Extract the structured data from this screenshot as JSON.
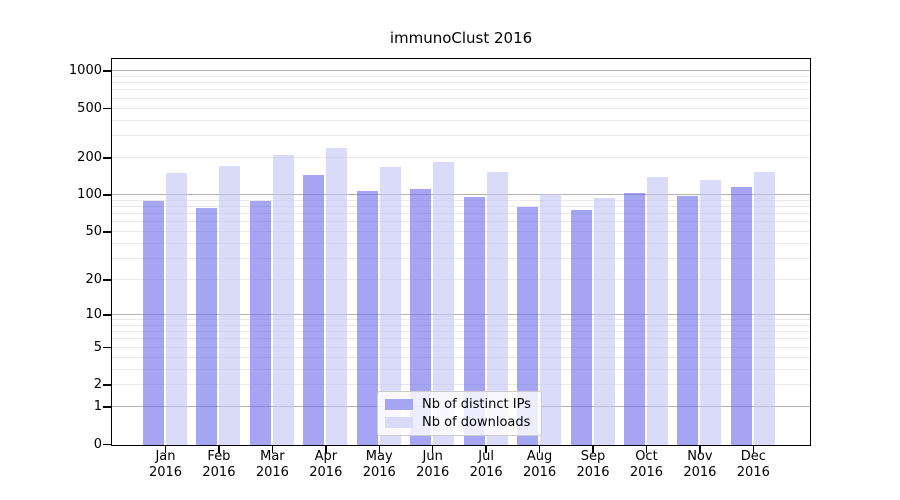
{
  "title": "immunoClust 2016",
  "chart_data": {
    "type": "bar",
    "title": "immunoClust 2016",
    "categories": [
      "Jan",
      "Feb",
      "Mar",
      "Apr",
      "May",
      "Jun",
      "Jul",
      "Aug",
      "Sep",
      "Oct",
      "Nov",
      "Dec"
    ],
    "x_axis": {
      "year": "2016",
      "tick_label_format": "Month over 2016, two lines"
    },
    "y_axis": {
      "scale": "log1p",
      "ticks": [
        0,
        1,
        2,
        5,
        10,
        20,
        50,
        100,
        200,
        500,
        1000
      ],
      "major_gridlines": [
        1,
        10,
        100,
        1000
      ],
      "minor_gridlines": [
        2,
        3,
        4,
        5,
        6,
        7,
        8,
        9,
        20,
        30,
        40,
        50,
        60,
        70,
        80,
        90,
        200,
        300,
        400,
        500,
        600,
        700,
        800,
        900
      ],
      "ylim": [
        0,
        1250
      ],
      "grid": "on"
    },
    "series": [
      {
        "name": "Nb of distinct IPs",
        "color": "#a5a5f2",
        "fill": "rgba(110,110,235,0.62)",
        "values": [
          91,
          79,
          91,
          148,
          110,
          113,
          98,
          81,
          76,
          105,
          100,
          117
        ]
      },
      {
        "name": "Nb of downloads",
        "color": "#dadaf9",
        "fill": "rgba(196,196,246,0.62)",
        "values": [
          154,
          173,
          215,
          245,
          170,
          187,
          155,
          103,
          96,
          143,
          133,
          156
        ]
      }
    ],
    "legend": {
      "position": "inside plot, lower center",
      "entries": [
        "Nb of distinct IPs",
        "Nb of downloads"
      ]
    }
  },
  "colors": {
    "background": "#ffffff",
    "spine": "#000000",
    "text": "#000000",
    "grid_minor": "#e9e9e9",
    "grid_major": "#b3b3b3",
    "legend_border": "#cccccc",
    "legend_bg": "rgba(255,255,255,0.8)"
  }
}
